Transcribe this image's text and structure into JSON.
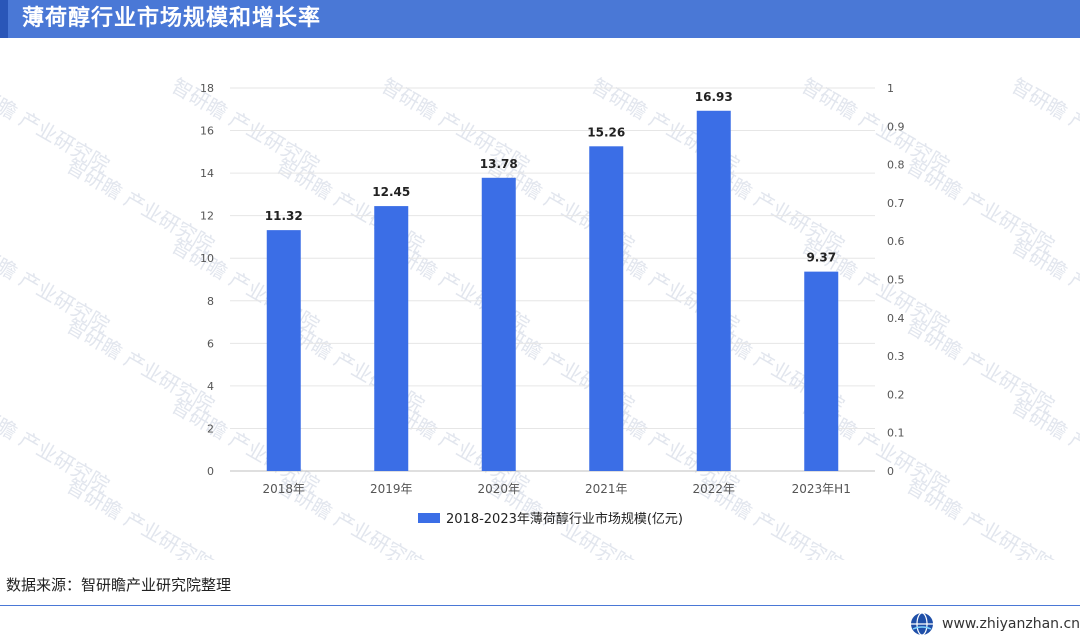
{
  "header": {
    "title": "薄荷醇行业市场规模和增长率"
  },
  "chart_data": {
    "type": "bar",
    "categories": [
      "2018年",
      "2019年",
      "2020年",
      "2021年",
      "2022年",
      "2023年H1"
    ],
    "series": [
      {
        "name": "2018-2023年薄荷醇行业市场规模(亿元)",
        "values": [
          11.32,
          12.45,
          13.78,
          15.26,
          16.93,
          9.37
        ],
        "color": "#3b6ee6"
      }
    ],
    "value_labels": [
      "11.32",
      "12.45",
      "13.78",
      "15.26",
      "16.93",
      "9.37"
    ],
    "y_left": {
      "min": 0,
      "max": 18,
      "step": 2,
      "tick_labels": [
        "0",
        "2",
        "4",
        "6",
        "8",
        "10",
        "12",
        "14",
        "16",
        "18"
      ]
    },
    "y_right": {
      "min": 0,
      "max": 1,
      "step": 0.1,
      "tick_labels": [
        "0",
        "0.1",
        "0.2",
        "0.3",
        "0.4",
        "0.5",
        "0.6",
        "0.7",
        "0.8",
        "0.9",
        "1"
      ]
    },
    "grid": "horizontal",
    "legend_position": "bottom"
  },
  "watermark": {
    "text": "智研瞻 产业研究院"
  },
  "footer": {
    "source": "数据来源：智研瞻产业研究院整理",
    "website": "www.zhiyanzhan.cn"
  }
}
